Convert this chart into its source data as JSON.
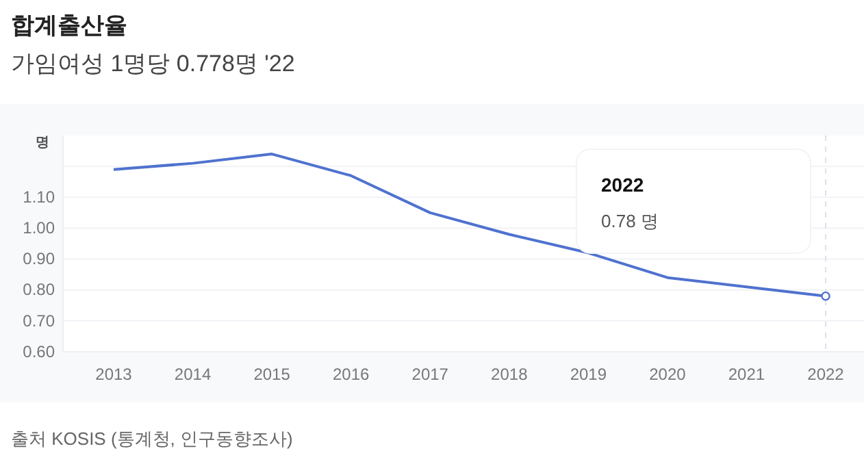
{
  "chart_data": {
    "type": "line",
    "title": "합계출산율",
    "subtitle": "가임여성 1명당 0.778명 '22",
    "ylabel": "명",
    "categories": [
      "2013",
      "2014",
      "2015",
      "2016",
      "2017",
      "2018",
      "2019",
      "2020",
      "2021",
      "2022"
    ],
    "series": [
      {
        "color": "#4f72cf",
        "values": [
          1.19,
          1.21,
          1.24,
          1.17,
          1.05,
          0.98,
          0.92,
          0.84,
          0.81,
          0.78
        ]
      }
    ],
    "ylim": [
      0.6,
      1.3
    ],
    "yticks": [
      {
        "value": 0.6,
        "label": "0.60"
      },
      {
        "value": 0.7,
        "label": "0.70"
      },
      {
        "value": 0.8,
        "label": "0.80"
      },
      {
        "value": 0.9,
        "label": "0.90"
      },
      {
        "value": 1.0,
        "label": "1.00"
      },
      {
        "value": 1.1,
        "label": "1.10"
      },
      {
        "value": 1.2,
        "label": null
      }
    ],
    "grid": "y",
    "marker": "none",
    "line_style": "solid",
    "ref_lines": [
      {
        "axis": "x",
        "value": "2022",
        "color": "#dde1e8",
        "line_style": "dashed"
      }
    ],
    "annotations": [
      "2022",
      "0.78 명",
      "출처 KOSIS (통계청, 인구동향조사)"
    ]
  }
}
